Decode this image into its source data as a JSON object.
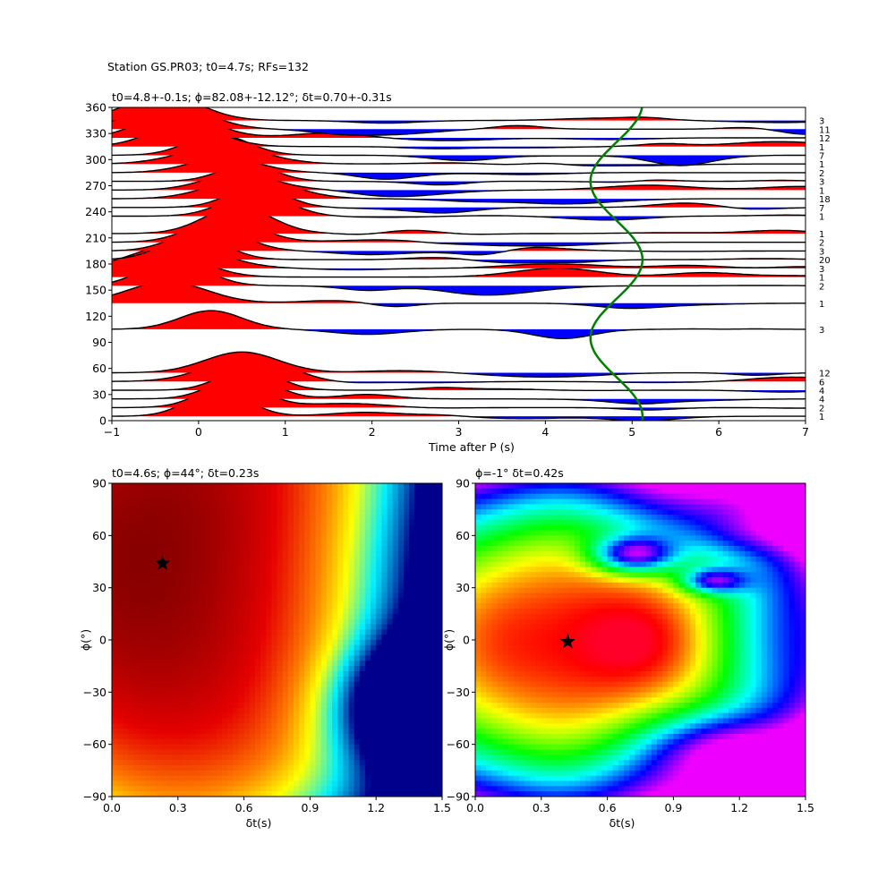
{
  "figure": {
    "suptitle": "Station GS.PR03; t0=4.7s; RFs=132"
  },
  "chart_data": [
    {
      "type": "wiggle",
      "title": "t0=4.8+-0.1s; ϕ=82.08+-12.12°; δt=0.70+-0.31s",
      "xlabel": "Time after P (s)",
      "ylabel": "",
      "xlim": [
        -1,
        7
      ],
      "ylim": [
        0,
        360
      ],
      "xticks": [
        -1,
        0,
        1,
        2,
        3,
        4,
        5,
        6,
        7
      ],
      "yticks": [
        0,
        30,
        60,
        90,
        120,
        150,
        180,
        210,
        240,
        270,
        300,
        330,
        360
      ],
      "grid": false,
      "positive_fill": "#ff0000",
      "negative_fill": "#0000ff",
      "curve_color": "#008000",
      "azimuth_counts": [
        {
          "baz": 5,
          "count": "1"
        },
        {
          "baz": 15,
          "count": "2"
        },
        {
          "baz": 25,
          "count": "4"
        },
        {
          "baz": 35,
          "count": "4"
        },
        {
          "baz": 45,
          "count": "6"
        },
        {
          "baz": 55,
          "count": "12"
        },
        {
          "baz": 105,
          "count": "3"
        },
        {
          "baz": 135,
          "count": "1"
        },
        {
          "baz": 155,
          "count": "2"
        },
        {
          "baz": 165,
          "count": "1"
        },
        {
          "baz": 175,
          "count": "3"
        },
        {
          "baz": 185,
          "count": "20"
        },
        {
          "baz": 195,
          "count": "3"
        },
        {
          "baz": 205,
          "count": "2"
        },
        {
          "baz": 215,
          "count": "1"
        },
        {
          "baz": 235,
          "count": "1"
        },
        {
          "baz": 245,
          "count": "7"
        },
        {
          "baz": 255,
          "count": "18"
        },
        {
          "baz": 265,
          "count": "1"
        },
        {
          "baz": 275,
          "count": "3"
        },
        {
          "baz": 285,
          "count": "2"
        },
        {
          "baz": 295,
          "count": "1"
        },
        {
          "baz": 305,
          "count": "7"
        },
        {
          "baz": 315,
          "count": "1"
        },
        {
          "baz": 325,
          "count": "12"
        },
        {
          "baz": 335,
          "count": "11"
        },
        {
          "baz": 345,
          "count": "3"
        }
      ]
    },
    {
      "type": "heatmap",
      "title": "t0=4.6s; ϕ=44°; δt=0.23s",
      "xlabel": "δt(s)",
      "ylabel": "ϕ(°)",
      "xlim": [
        0,
        1.5
      ],
      "ylim": [
        -90,
        90
      ],
      "xticks": [
        "0.0",
        "0.3",
        "0.6",
        "0.9",
        "1.2",
        "1.5"
      ],
      "yticks": [
        -90,
        -60,
        -30,
        0,
        30,
        60,
        90
      ],
      "best": {
        "dt": 0.23,
        "phi": 44
      },
      "colormap": "hot-red-to-blue"
    },
    {
      "type": "heatmap",
      "title": "ϕ=-1° δt=0.42s",
      "xlabel": "δt(s)",
      "ylabel": "ϕ(°)",
      "xlim": [
        0,
        1.5
      ],
      "ylim": [
        -90,
        90
      ],
      "xticks": [
        "0.0",
        "0.3",
        "0.6",
        "0.9",
        "1.2",
        "1.5"
      ],
      "yticks": [
        -90,
        -60,
        -30,
        0,
        30,
        60,
        90
      ],
      "best": {
        "dt": 0.42,
        "phi": -1
      },
      "colormap": "hsv"
    }
  ]
}
